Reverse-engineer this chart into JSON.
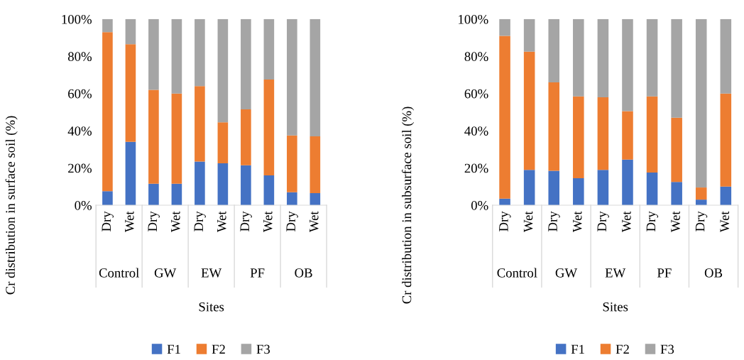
{
  "chart_data": [
    {
      "type": "bar",
      "stacked": true,
      "ylabel": "Cr distribution in surface soil (%)",
      "xlabel": "Sites",
      "categories": [
        "Dry",
        "Wet",
        "Dry",
        "Wet",
        "Dry",
        "Wet",
        "Dry",
        "Wet",
        "Dry",
        "Wet"
      ],
      "annotations": [
        "Control",
        "GW",
        "EW",
        "PF",
        "OB"
      ],
      "series": [
        {
          "name": "F1",
          "color": "#4472c4",
          "values": [
            7.5,
            34,
            11.5,
            11.5,
            23.5,
            22.5,
            21.5,
            16,
            7,
            6.5
          ]
        },
        {
          "name": "F2",
          "color": "#ed7d31",
          "values": [
            85.5,
            52.5,
            50.5,
            48.5,
            40.5,
            22,
            30,
            51.5,
            30.5,
            30.5
          ]
        },
        {
          "name": "F3",
          "color": "#a5a5a5",
          "values": [
            7,
            13.5,
            38,
            40,
            36,
            55.5,
            48.5,
            32.5,
            62.5,
            63
          ]
        }
      ],
      "ylim": [
        0,
        100
      ],
      "yticks": [
        {
          "value": 0,
          "label": "0%"
        },
        {
          "value": 20,
          "label": "20%"
        },
        {
          "value": 40,
          "label": "40%"
        },
        {
          "value": 60,
          "label": "60%"
        },
        {
          "value": 80,
          "label": "80%"
        },
        {
          "value": 100,
          "label": "100%"
        }
      ],
      "grid": false,
      "legend": "bottom"
    },
    {
      "type": "bar",
      "stacked": true,
      "ylabel": "Cr distribution in subsurface soil (%)",
      "xlabel": "Sites",
      "categories": [
        "Dry",
        "Wet",
        "Dry",
        "Wet",
        "Dry",
        "Wet",
        "Dry",
        "Wet",
        "Dry",
        "Wet"
      ],
      "annotations": [
        "Control",
        "GW",
        "EW",
        "PF",
        "OB"
      ],
      "series": [
        {
          "name": "F1",
          "color": "#4472c4",
          "values": [
            3.5,
            19,
            18.5,
            14.5,
            19,
            24.5,
            17.5,
            12.5,
            3,
            10
          ]
        },
        {
          "name": "F2",
          "color": "#ed7d31",
          "values": [
            87.5,
            63.5,
            47.5,
            44,
            39,
            26,
            41,
            34.5,
            6.5,
            50
          ]
        },
        {
          "name": "F3",
          "color": "#a5a5a5",
          "values": [
            9,
            17.5,
            34,
            41.5,
            42,
            49.5,
            41.5,
            53,
            90.5,
            40
          ]
        }
      ],
      "ylim": [
        0,
        100
      ],
      "yticks": [
        {
          "value": 0,
          "label": "0%"
        },
        {
          "value": 20,
          "label": "20%"
        },
        {
          "value": 40,
          "label": "40%"
        },
        {
          "value": 60,
          "label": "60%"
        },
        {
          "value": 80,
          "label": "80%"
        },
        {
          "value": 100,
          "label": "100%"
        }
      ],
      "grid": false,
      "legend": "bottom"
    }
  ]
}
